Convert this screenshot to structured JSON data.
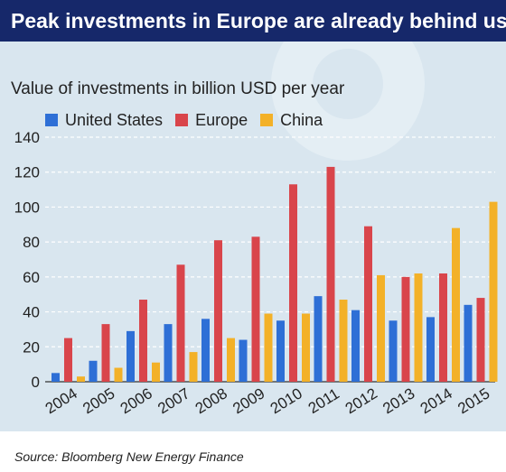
{
  "header": {
    "title": "Peak investments in Europe are already behind us"
  },
  "footer": {
    "source": "Source: Bloomberg New Energy Finance"
  },
  "chart_data": {
    "type": "bar",
    "title": "Peak investments in Europe are already behind us",
    "ylabel": "Value of investments in billion USD per year",
    "xlabel": "",
    "categories": [
      "2004",
      "2005",
      "2006",
      "2007",
      "2008",
      "2009",
      "2010",
      "2011",
      "2012",
      "2013",
      "2014",
      "2015"
    ],
    "series": [
      {
        "name": "United States",
        "color": "#2e6fd6",
        "values": [
          5,
          12,
          29,
          33,
          36,
          24,
          35,
          49,
          41,
          35,
          37,
          44
        ]
      },
      {
        "name": "Europe",
        "color": "#d9454b",
        "values": [
          25,
          33,
          47,
          67,
          81,
          83,
          113,
          123,
          89,
          60,
          62,
          48
        ]
      },
      {
        "name": "China",
        "color": "#f3b128",
        "values": [
          3,
          8,
          11,
          17,
          25,
          39,
          39,
          47,
          61,
          62,
          88,
          103
        ]
      }
    ],
    "ylim": [
      0,
      140
    ],
    "yticks": [
      0,
      20,
      40,
      60,
      80,
      100,
      120,
      140
    ],
    "grid": true,
    "legend_position": "top-left"
  }
}
